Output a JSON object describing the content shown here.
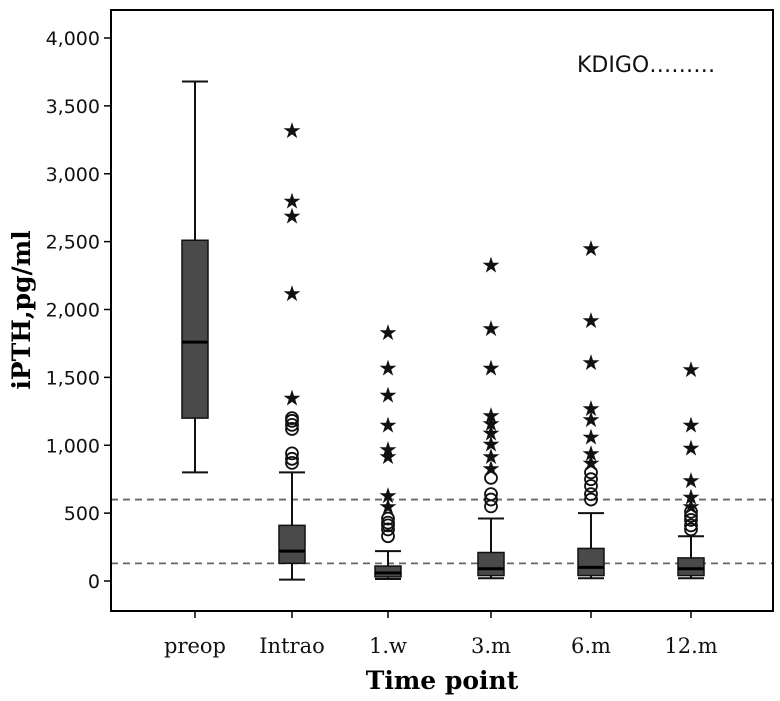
{
  "chart_data": {
    "type": "box",
    "title": "",
    "xlabel": "Time point",
    "ylabel": "iPTH,pg/ml",
    "ylim": [
      -200,
      4200
    ],
    "yticks": [
      0,
      500,
      1000,
      1500,
      2000,
      2500,
      3000,
      3500,
      4000
    ],
    "ytick_labels": [
      "0",
      "500",
      "1,000",
      "1,500",
      "2,000",
      "2,500",
      "3,000",
      "3,500",
      "4,000"
    ],
    "categories": [
      "preop",
      "Intrao",
      "1.w",
      "3.m",
      "6.m",
      "12.m"
    ],
    "legend": {
      "label": "KDIGO………",
      "placement": "top-right"
    },
    "reference_lines": [
      {
        "value": 600,
        "style": "dashed"
      },
      {
        "value": 130,
        "style": "dashed"
      }
    ],
    "boxes": [
      {
        "category": "preop",
        "min": 800,
        "q1": 1200,
        "median": 1760,
        "q3": 2510,
        "max": 3680,
        "outliers": [],
        "extremes": []
      },
      {
        "category": "Intrao",
        "min": 10,
        "q1": 130,
        "median": 220,
        "q3": 410,
        "max": 800,
        "outliers": [
          870,
          900,
          940,
          1120,
          1150,
          1180,
          1200
        ],
        "extremes": [
          1360,
          2130,
          2700,
          2810,
          3330
        ]
      },
      {
        "category": "1.w",
        "min": 15,
        "q1": 30,
        "median": 60,
        "q3": 110,
        "max": 220,
        "outliers": [
          330,
          380,
          410,
          430,
          460
        ],
        "extremes": [
          560,
          640,
          930,
          980,
          1160,
          1380,
          1580,
          1840
        ]
      },
      {
        "category": "3.m",
        "min": 20,
        "q1": 40,
        "median": 90,
        "q3": 210,
        "max": 460,
        "outliers": [
          550,
          600,
          640,
          760
        ],
        "extremes": [
          840,
          930,
          1020,
          1100,
          1170,
          1230,
          1580,
          1870,
          2340
        ]
      },
      {
        "category": "6.m",
        "min": 20,
        "q1": 40,
        "median": 100,
        "q3": 240,
        "max": 500,
        "outliers": [
          600,
          640,
          700,
          750,
          800
        ],
        "extremes": [
          880,
          950,
          1070,
          1200,
          1280,
          1620,
          1930,
          2460
        ]
      },
      {
        "category": "12.m",
        "min": 20,
        "q1": 40,
        "median": 90,
        "q3": 170,
        "max": 330,
        "outliers": [
          380,
          410,
          450,
          480,
          510
        ],
        "extremes": [
          560,
          630,
          750,
          990,
          1160,
          1570
        ]
      }
    ]
  }
}
